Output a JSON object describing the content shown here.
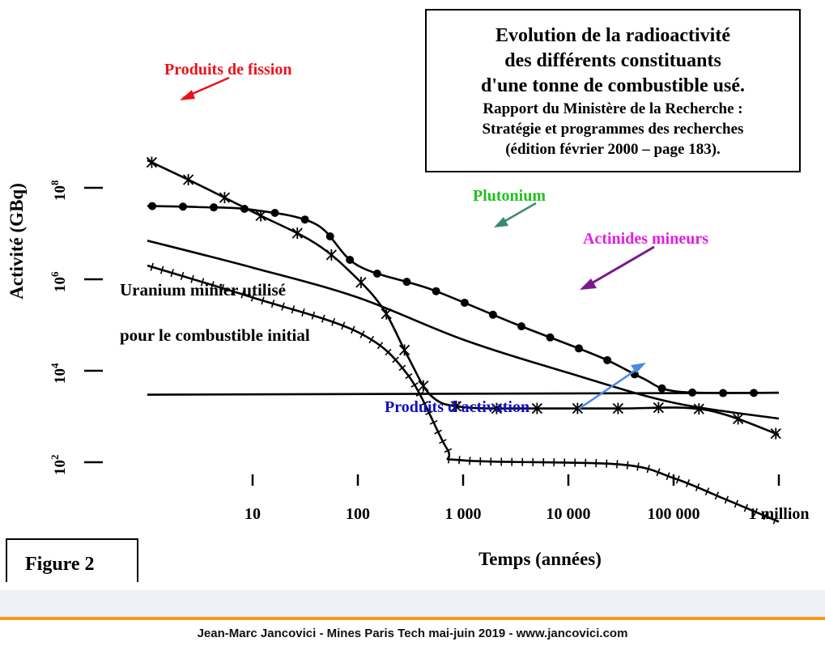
{
  "title_box": {
    "lines": [
      "Evolution de la radioactivité",
      "des différents constituants",
      "d'une tonne de combustible usé."
    ],
    "source_lines": [
      "Rapport du Ministère de la Recherche :",
      "Stratégie et programmes des recherches",
      "(édition février 2000 – page 183)."
    ]
  },
  "figure_label": "Figure 2",
  "footer": {
    "text": "Jean-Marc Jancovici - Mines Paris Tech mai-juin 2019 - www.jancovici.com",
    "accent_color": "#f39c12"
  },
  "chart_data": {
    "type": "line",
    "x_scale": "log",
    "y_scale": "log",
    "xlabel": "Temps (années)",
    "ylabel": "Activité (GBq)",
    "xlim": [
      1,
      1000000
    ],
    "ylim": [
      10,
      1000000000
    ],
    "x_ticks": [
      {
        "value": 10,
        "label": "10"
      },
      {
        "value": 100,
        "label": "100"
      },
      {
        "value": 1000,
        "label": "1 000"
      },
      {
        "value": 10000,
        "label": "10 000"
      },
      {
        "value": 100000,
        "label": "100 000"
      },
      {
        "value": 1000000,
        "label": "1 million"
      }
    ],
    "y_ticks": [
      {
        "value": 100,
        "base": "10",
        "exp": "2"
      },
      {
        "value": 10000,
        "base": "10",
        "exp": "4"
      },
      {
        "value": 1000000,
        "base": "10",
        "exp": "6"
      },
      {
        "value": 100000000,
        "base": "10",
        "exp": "8"
      }
    ],
    "series": [
      {
        "key": "fission",
        "name": "Produits de fission",
        "label_color": "#e8141c",
        "marker": "star",
        "x": [
          1,
          3,
          10,
          40,
          100,
          180,
          300,
          500,
          1000,
          5000,
          30000,
          200000,
          1000000
        ],
        "y": [
          400000000,
          120000000,
          30000000,
          6000000,
          1000000,
          200000,
          20000,
          2800,
          1600,
          1500,
          1500,
          1400,
          400
        ]
      },
      {
        "key": "plutonium",
        "name": "Plutonium",
        "label_color": "#20c020",
        "marker": "dot",
        "x": [
          1,
          3,
          10,
          40,
          100,
          500,
          3000,
          20000,
          50000,
          110000,
          1000000
        ],
        "y": [
          40000000,
          38000000,
          33000000,
          16000000,
          2000000,
          600000,
          110000,
          20000,
          7000,
          3500,
          3300
        ]
      },
      {
        "key": "actinides",
        "name": "Actinides mineurs",
        "label_color": "#e020e0",
        "marker": "none",
        "x": [
          1,
          10,
          100,
          1000,
          10000,
          100000,
          1000000
        ],
        "y": [
          7000000,
          1800000,
          400000,
          48000,
          9000,
          2000,
          900
        ]
      },
      {
        "key": "activation",
        "name": "Produits d'activation",
        "label_color": "#1010c0",
        "marker": "tick",
        "x": [
          1,
          10,
          100,
          300,
          700,
          1000,
          30000,
          100000,
          300000,
          1000000
        ],
        "y": [
          2000000,
          400000,
          70000,
          8000,
          200,
          110,
          90,
          45,
          16,
          5
        ]
      },
      {
        "key": "uranium",
        "name": "Uranium minier utilisé pour le combustible initial",
        "label_color": "#000000",
        "marker": "none",
        "x": [
          1,
          1000000
        ],
        "y": [
          3000,
          3300
        ]
      }
    ]
  }
}
